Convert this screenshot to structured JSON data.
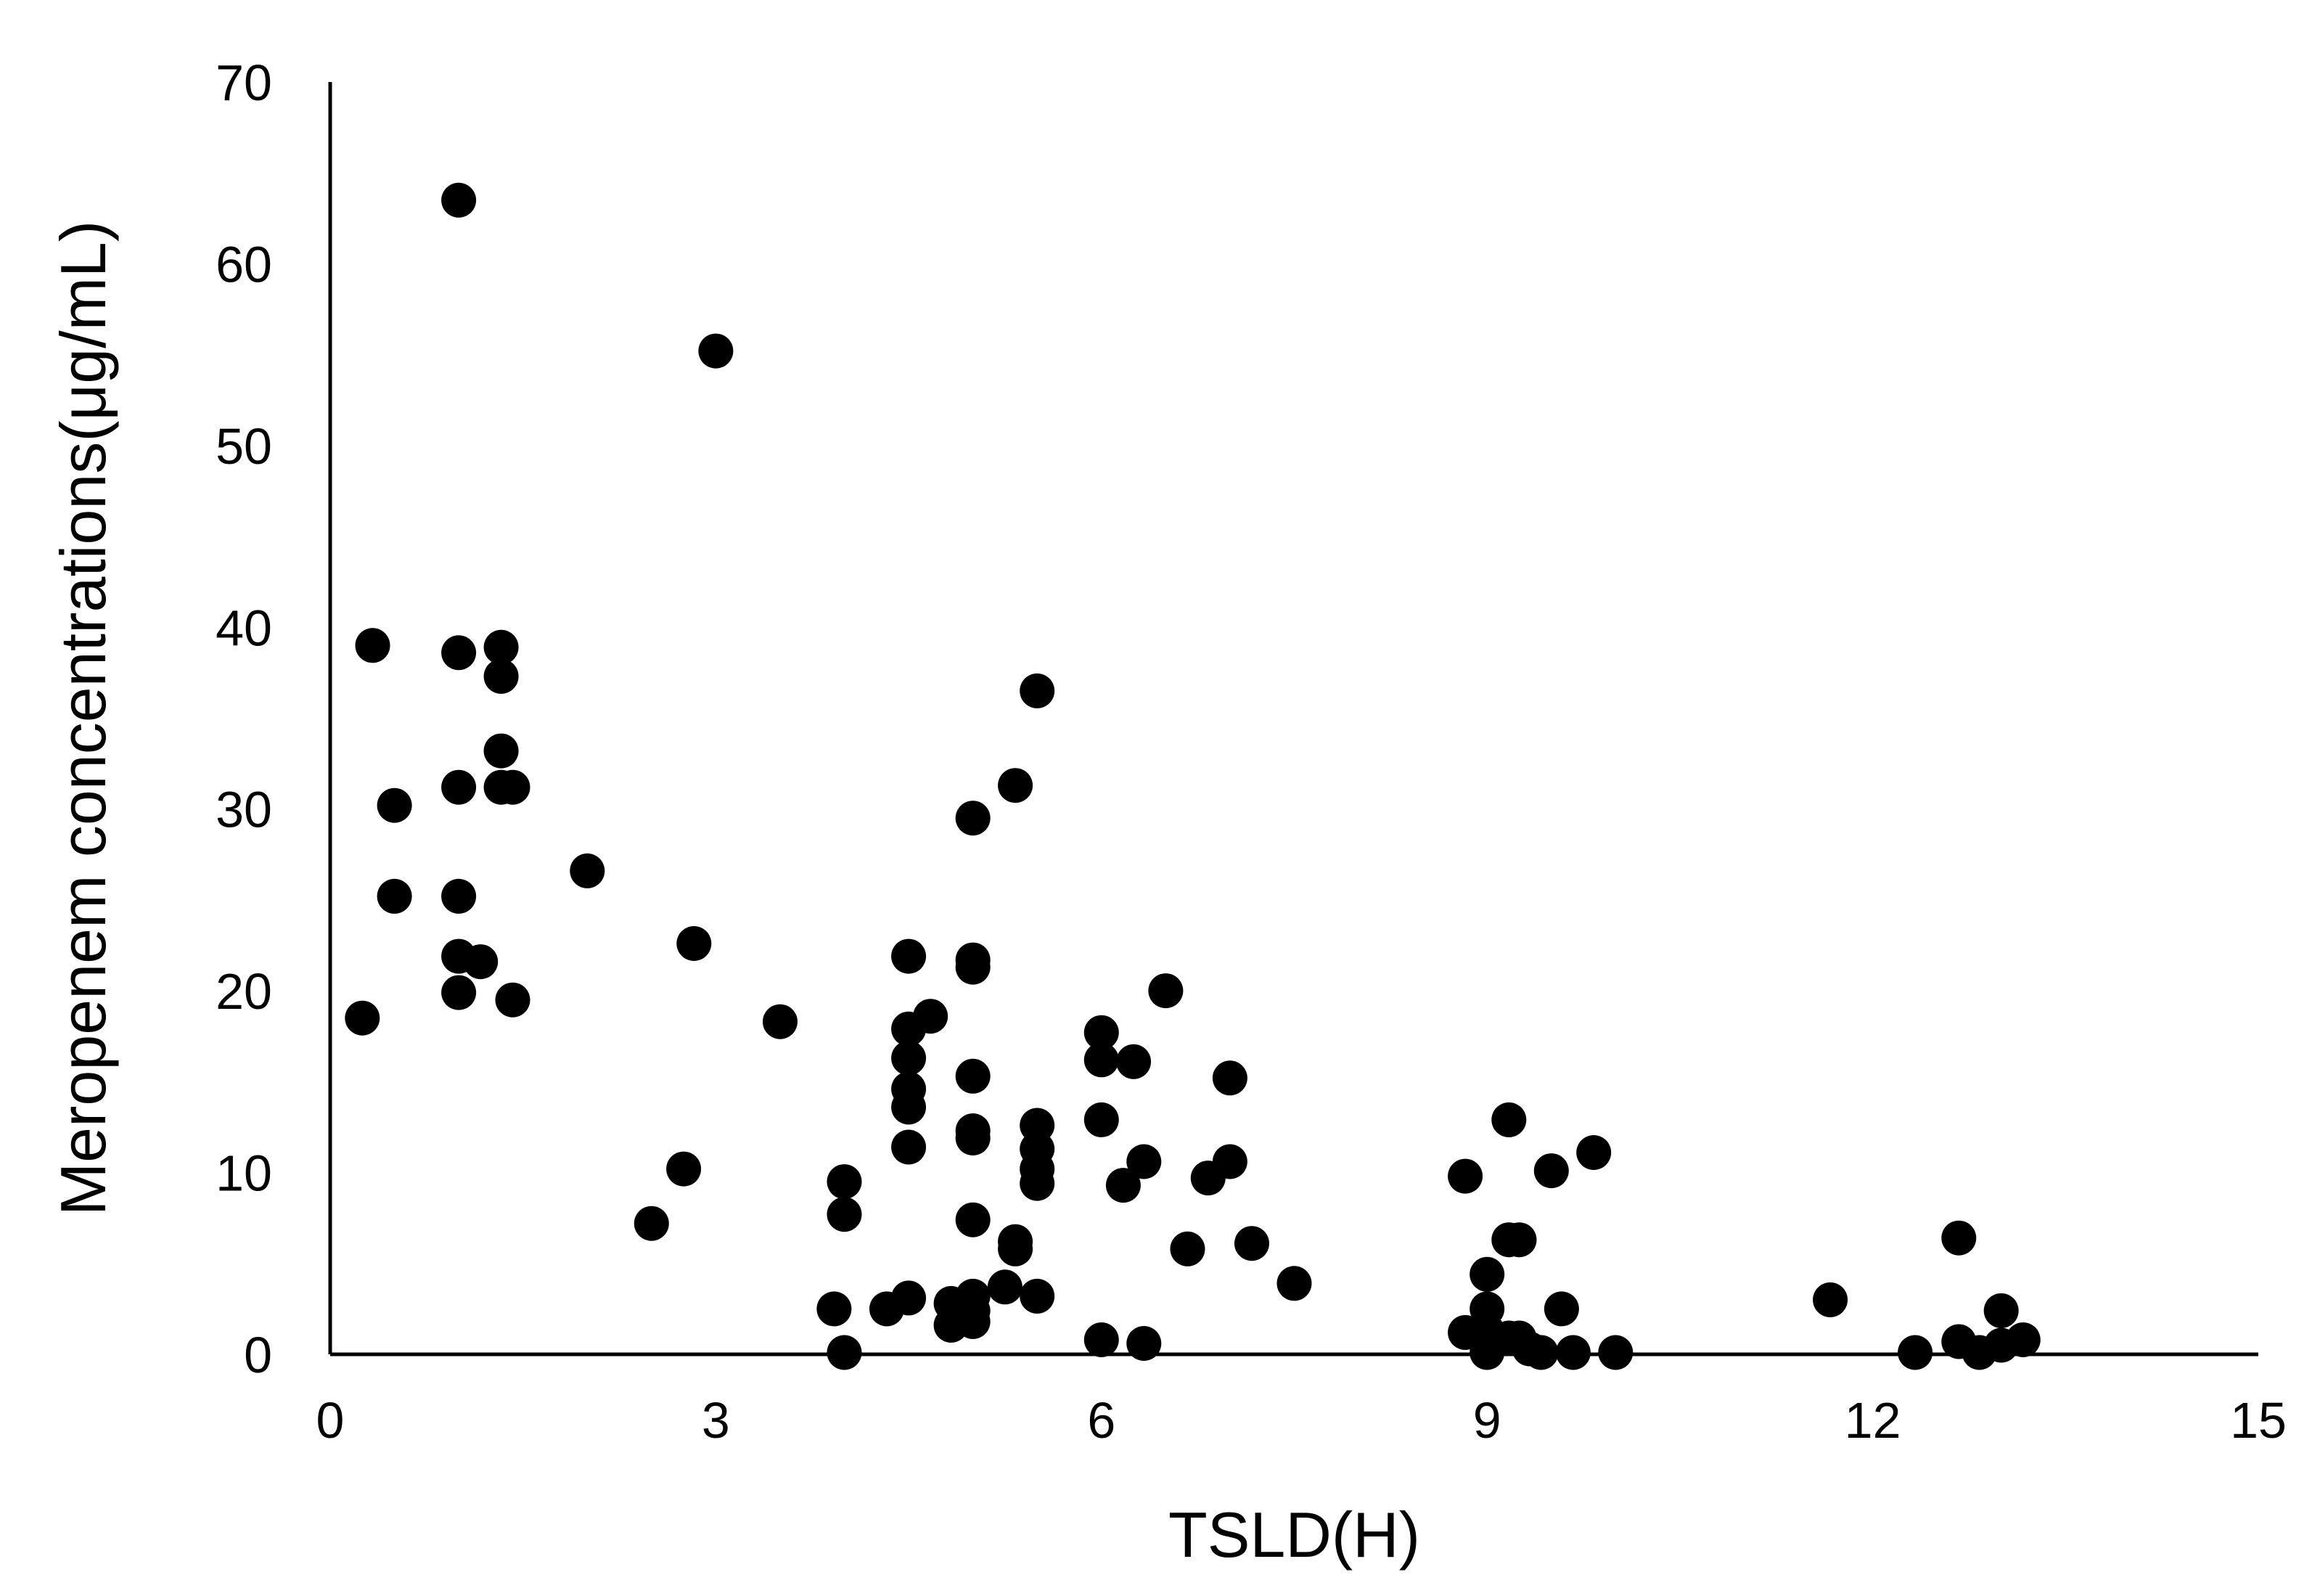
{
  "chart_data": {
    "type": "scatter",
    "title": "",
    "xlabel": "TSLD(H)",
    "ylabel": "Meropenem concentrations(μg/mL)",
    "xlim": [
      0,
      15
    ],
    "ylim": [
      0,
      70
    ],
    "xticks": [
      0,
      3,
      6,
      9,
      12,
      15
    ],
    "yticks": [
      0,
      10,
      20,
      30,
      40,
      50,
      60,
      70
    ],
    "grid": false,
    "legend": "none",
    "marker_color": "#000000",
    "series": [
      {
        "points": [
          [
            0.25,
            18.5
          ],
          [
            0.33,
            39
          ],
          [
            0.5,
            30.2
          ],
          [
            0.5,
            25.2
          ],
          [
            1.0,
            63.5
          ],
          [
            1.0,
            38.6
          ],
          [
            1.0,
            31.2
          ],
          [
            1.0,
            25.2
          ],
          [
            1.0,
            21.9
          ],
          [
            1.0,
            19.9
          ],
          [
            1.17,
            21.6
          ],
          [
            1.33,
            38.9
          ],
          [
            1.33,
            37.3
          ],
          [
            1.33,
            33.2
          ],
          [
            1.33,
            31.2
          ],
          [
            1.42,
            31.2
          ],
          [
            1.42,
            19.5
          ],
          [
            2.0,
            26.6
          ],
          [
            2.5,
            7.2
          ],
          [
            2.75,
            10.2
          ],
          [
            2.83,
            22.6
          ],
          [
            3.0,
            55.2
          ],
          [
            3.5,
            18.3
          ],
          [
            3.92,
            2.5
          ],
          [
            4.0,
            9.5
          ],
          [
            4.0,
            7.7
          ],
          [
            4.0,
            0.1
          ],
          [
            4.33,
            2.5
          ],
          [
            4.5,
            21.9
          ],
          [
            4.5,
            17.9
          ],
          [
            4.5,
            16.3
          ],
          [
            4.5,
            14.6
          ],
          [
            4.5,
            13.6
          ],
          [
            4.5,
            11.4
          ],
          [
            4.5,
            3.1
          ],
          [
            4.67,
            18.6
          ],
          [
            4.83,
            2.8
          ],
          [
            4.83,
            1.6
          ],
          [
            5.0,
            29.5
          ],
          [
            5.0,
            21.7
          ],
          [
            5.0,
            21.3
          ],
          [
            5.0,
            15.3
          ],
          [
            5.0,
            12.3
          ],
          [
            5.0,
            11.9
          ],
          [
            5.0,
            7.4
          ],
          [
            5.0,
            3.2
          ],
          [
            5.0,
            2.4
          ],
          [
            5.0,
            1.8
          ],
          [
            5.25,
            3.7
          ],
          [
            5.33,
            31.3
          ],
          [
            5.33,
            6.2
          ],
          [
            5.33,
            5.8
          ],
          [
            5.5,
            36.5
          ],
          [
            5.5,
            12.6
          ],
          [
            5.5,
            11.3
          ],
          [
            5.5,
            10.2
          ],
          [
            5.5,
            9.4
          ],
          [
            5.5,
            3.2
          ],
          [
            6.0,
            17.7
          ],
          [
            6.0,
            16.2
          ],
          [
            6.0,
            12.9
          ],
          [
            6.0,
            0.8
          ],
          [
            6.17,
            9.3
          ],
          [
            6.25,
            16.1
          ],
          [
            6.33,
            10.6
          ],
          [
            6.33,
            0.6
          ],
          [
            6.5,
            20.0
          ],
          [
            6.67,
            5.8
          ],
          [
            6.83,
            9.7
          ],
          [
            7.0,
            15.2
          ],
          [
            7.0,
            10.6
          ],
          [
            7.17,
            6.1
          ],
          [
            7.5,
            3.9
          ],
          [
            8.83,
            9.8
          ],
          [
            8.83,
            1.2
          ],
          [
            9.0,
            4.4
          ],
          [
            9.0,
            2.5
          ],
          [
            9.0,
            1.3
          ],
          [
            9.0,
            0.7
          ],
          [
            9.0,
            0.1
          ],
          [
            9.17,
            12.9
          ],
          [
            9.17,
            6.3
          ],
          [
            9.17,
            0.9
          ],
          [
            9.25,
            6.3
          ],
          [
            9.25,
            0.9
          ],
          [
            9.33,
            0.3
          ],
          [
            9.42,
            0.1
          ],
          [
            9.5,
            10.1
          ],
          [
            9.58,
            2.5
          ],
          [
            9.67,
            0.1
          ],
          [
            9.83,
            11.1
          ],
          [
            10.0,
            0.1
          ],
          [
            11.67,
            3.0
          ],
          [
            12.33,
            0.1
          ],
          [
            12.67,
            6.4
          ],
          [
            12.67,
            0.7
          ],
          [
            12.83,
            0.1
          ],
          [
            13.0,
            2.4
          ],
          [
            13.0,
            0.5
          ],
          [
            13.17,
            0.8
          ]
        ]
      }
    ]
  }
}
